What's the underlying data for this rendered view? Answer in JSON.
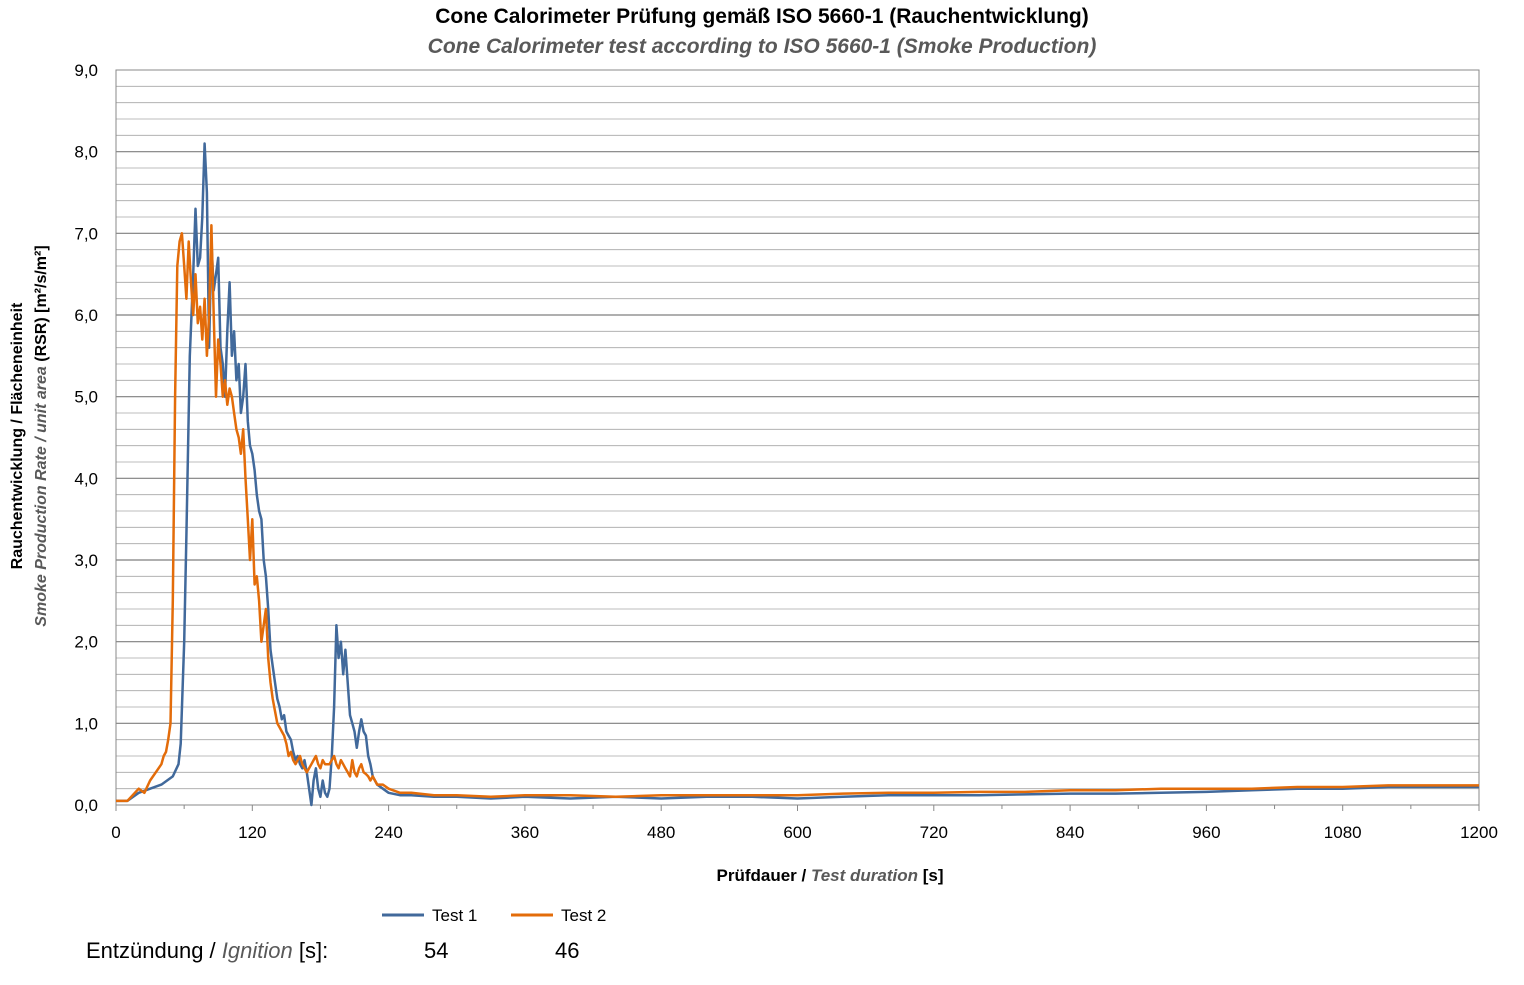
{
  "chart_data": {
    "type": "line",
    "title": "Cone Calorimeter Prüfung gemäß ISO 5660-1 (Rauchentwicklung)",
    "subtitle": "Cone Calorimeter test according to ISO 5660-1 (Smoke Production)",
    "xlabel": {
      "main": "Prüfdauer / ",
      "italic": "Test duration",
      "unit": " [s]"
    },
    "ylabel": {
      "main": "Rauchentwicklung / Flächeneinheit",
      "italic": "Smoke Production Rate / unit area",
      "unit": " (RSR) [m²/s/m²]"
    },
    "xlim": [
      0,
      1200
    ],
    "ylim": [
      0,
      9
    ],
    "xticks": [
      0,
      120,
      240,
      360,
      480,
      600,
      720,
      840,
      960,
      1080,
      1200
    ],
    "yticks": [
      "0,0",
      "1,0",
      "2,0",
      "3,0",
      "4,0",
      "5,0",
      "6,0",
      "7,0",
      "8,0",
      "9,0"
    ],
    "grid": true,
    "minor_grid_step": 0.2,
    "legend_position": "bottom-left",
    "series": [
      {
        "name": "Test 1",
        "color": "#41699b",
        "points": [
          [
            0,
            0.05
          ],
          [
            10,
            0.05
          ],
          [
            20,
            0.15
          ],
          [
            30,
            0.2
          ],
          [
            40,
            0.25
          ],
          [
            45,
            0.3
          ],
          [
            50,
            0.35
          ],
          [
            55,
            0.5
          ],
          [
            57,
            0.75
          ],
          [
            60,
            2.0
          ],
          [
            62,
            3.3
          ],
          [
            65,
            5.5
          ],
          [
            68,
            6.5
          ],
          [
            70,
            7.3
          ],
          [
            72,
            6.6
          ],
          [
            74,
            6.7
          ],
          [
            76,
            7.2
          ],
          [
            78,
            8.1
          ],
          [
            80,
            7.5
          ],
          [
            82,
            5.6
          ],
          [
            84,
            6.9
          ],
          [
            86,
            6.3
          ],
          [
            88,
            6.5
          ],
          [
            90,
            6.7
          ],
          [
            92,
            5.6
          ],
          [
            94,
            5.4
          ],
          [
            96,
            5.0
          ],
          [
            98,
            5.8
          ],
          [
            100,
            6.4
          ],
          [
            102,
            5.5
          ],
          [
            104,
            5.8
          ],
          [
            106,
            5.2
          ],
          [
            108,
            5.4
          ],
          [
            110,
            4.8
          ],
          [
            112,
            5.0
          ],
          [
            114,
            5.4
          ],
          [
            116,
            4.7
          ],
          [
            118,
            4.4
          ],
          [
            120,
            4.3
          ],
          [
            122,
            4.1
          ],
          [
            124,
            3.8
          ],
          [
            126,
            3.6
          ],
          [
            128,
            3.5
          ],
          [
            130,
            3.0
          ],
          [
            132,
            2.8
          ],
          [
            134,
            2.4
          ],
          [
            136,
            1.9
          ],
          [
            138,
            1.7
          ],
          [
            140,
            1.5
          ],
          [
            142,
            1.3
          ],
          [
            144,
            1.2
          ],
          [
            146,
            1.05
          ],
          [
            148,
            1.1
          ],
          [
            150,
            0.9
          ],
          [
            152,
            0.85
          ],
          [
            154,
            0.8
          ],
          [
            156,
            0.65
          ],
          [
            158,
            0.55
          ],
          [
            160,
            0.6
          ],
          [
            162,
            0.5
          ],
          [
            164,
            0.45
          ],
          [
            166,
            0.55
          ],
          [
            168,
            0.4
          ],
          [
            170,
            0.2
          ],
          [
            172,
            0.0
          ],
          [
            174,
            0.3
          ],
          [
            176,
            0.45
          ],
          [
            178,
            0.2
          ],
          [
            180,
            0.1
          ],
          [
            182,
            0.3
          ],
          [
            184,
            0.15
          ],
          [
            186,
            0.1
          ],
          [
            188,
            0.2
          ],
          [
            190,
            0.6
          ],
          [
            192,
            1.2
          ],
          [
            194,
            2.2
          ],
          [
            196,
            1.8
          ],
          [
            198,
            2.0
          ],
          [
            200,
            1.6
          ],
          [
            202,
            1.9
          ],
          [
            204,
            1.5
          ],
          [
            206,
            1.1
          ],
          [
            208,
            1.0
          ],
          [
            210,
            0.9
          ],
          [
            212,
            0.7
          ],
          [
            214,
            0.9
          ],
          [
            216,
            1.05
          ],
          [
            218,
            0.9
          ],
          [
            220,
            0.85
          ],
          [
            222,
            0.6
          ],
          [
            224,
            0.5
          ],
          [
            226,
            0.35
          ],
          [
            230,
            0.25
          ],
          [
            235,
            0.2
          ],
          [
            240,
            0.15
          ],
          [
            250,
            0.12
          ],
          [
            260,
            0.12
          ],
          [
            280,
            0.1
          ],
          [
            300,
            0.1
          ],
          [
            330,
            0.08
          ],
          [
            360,
            0.1
          ],
          [
            400,
            0.08
          ],
          [
            440,
            0.1
          ],
          [
            480,
            0.08
          ],
          [
            520,
            0.1
          ],
          [
            560,
            0.1
          ],
          [
            600,
            0.08
          ],
          [
            640,
            0.1
          ],
          [
            680,
            0.12
          ],
          [
            720,
            0.12
          ],
          [
            760,
            0.12
          ],
          [
            800,
            0.13
          ],
          [
            840,
            0.14
          ],
          [
            880,
            0.14
          ],
          [
            920,
            0.15
          ],
          [
            960,
            0.16
          ],
          [
            1000,
            0.18
          ],
          [
            1040,
            0.2
          ],
          [
            1080,
            0.2
          ],
          [
            1120,
            0.22
          ],
          [
            1160,
            0.22
          ],
          [
            1200,
            0.22
          ]
        ]
      },
      {
        "name": "Test 2",
        "color": "#e36c0a",
        "points": [
          [
            0,
            0.05
          ],
          [
            10,
            0.05
          ],
          [
            20,
            0.2
          ],
          [
            25,
            0.15
          ],
          [
            30,
            0.3
          ],
          [
            35,
            0.4
          ],
          [
            40,
            0.5
          ],
          [
            42,
            0.6
          ],
          [
            44,
            0.65
          ],
          [
            46,
            0.8
          ],
          [
            48,
            1.0
          ],
          [
            50,
            2.5
          ],
          [
            52,
            5.0
          ],
          [
            54,
            6.6
          ],
          [
            56,
            6.9
          ],
          [
            58,
            7.0
          ],
          [
            60,
            6.6
          ],
          [
            62,
            6.2
          ],
          [
            64,
            6.9
          ],
          [
            66,
            6.4
          ],
          [
            68,
            6.0
          ],
          [
            70,
            6.5
          ],
          [
            72,
            5.9
          ],
          [
            74,
            6.1
          ],
          [
            76,
            5.7
          ],
          [
            78,
            6.2
          ],
          [
            80,
            5.5
          ],
          [
            82,
            6.0
          ],
          [
            84,
            7.1
          ],
          [
            86,
            6.0
          ],
          [
            88,
            5.0
          ],
          [
            90,
            5.7
          ],
          [
            92,
            5.4
          ],
          [
            94,
            5.0
          ],
          [
            96,
            5.2
          ],
          [
            98,
            4.9
          ],
          [
            100,
            5.1
          ],
          [
            102,
            5.0
          ],
          [
            104,
            4.8
          ],
          [
            106,
            4.6
          ],
          [
            108,
            4.5
          ],
          [
            110,
            4.3
          ],
          [
            112,
            4.6
          ],
          [
            114,
            4.0
          ],
          [
            116,
            3.5
          ],
          [
            118,
            3.0
          ],
          [
            120,
            3.5
          ],
          [
            122,
            2.7
          ],
          [
            124,
            2.8
          ],
          [
            126,
            2.5
          ],
          [
            128,
            2.0
          ],
          [
            130,
            2.2
          ],
          [
            132,
            2.4
          ],
          [
            134,
            1.8
          ],
          [
            136,
            1.5
          ],
          [
            138,
            1.3
          ],
          [
            140,
            1.15
          ],
          [
            142,
            1.0
          ],
          [
            144,
            0.95
          ],
          [
            146,
            0.9
          ],
          [
            148,
            0.85
          ],
          [
            150,
            0.75
          ],
          [
            152,
            0.6
          ],
          [
            154,
            0.65
          ],
          [
            156,
            0.55
          ],
          [
            158,
            0.5
          ],
          [
            160,
            0.55
          ],
          [
            162,
            0.6
          ],
          [
            164,
            0.5
          ],
          [
            166,
            0.45
          ],
          [
            168,
            0.4
          ],
          [
            170,
            0.45
          ],
          [
            172,
            0.5
          ],
          [
            174,
            0.55
          ],
          [
            176,
            0.6
          ],
          [
            178,
            0.5
          ],
          [
            180,
            0.45
          ],
          [
            182,
            0.55
          ],
          [
            184,
            0.5
          ],
          [
            186,
            0.5
          ],
          [
            188,
            0.5
          ],
          [
            190,
            0.55
          ],
          [
            192,
            0.6
          ],
          [
            194,
            0.5
          ],
          [
            196,
            0.45
          ],
          [
            198,
            0.55
          ],
          [
            200,
            0.5
          ],
          [
            202,
            0.45
          ],
          [
            204,
            0.4
          ],
          [
            206,
            0.35
          ],
          [
            208,
            0.55
          ],
          [
            210,
            0.4
          ],
          [
            212,
            0.35
          ],
          [
            214,
            0.45
          ],
          [
            216,
            0.5
          ],
          [
            218,
            0.4
          ],
          [
            220,
            0.38
          ],
          [
            222,
            0.35
          ],
          [
            224,
            0.3
          ],
          [
            226,
            0.35
          ],
          [
            230,
            0.25
          ],
          [
            235,
            0.25
          ],
          [
            240,
            0.2
          ],
          [
            250,
            0.15
          ],
          [
            260,
            0.15
          ],
          [
            280,
            0.12
          ],
          [
            300,
            0.12
          ],
          [
            330,
            0.1
          ],
          [
            360,
            0.12
          ],
          [
            400,
            0.12
          ],
          [
            440,
            0.1
          ],
          [
            480,
            0.12
          ],
          [
            520,
            0.12
          ],
          [
            560,
            0.12
          ],
          [
            600,
            0.12
          ],
          [
            640,
            0.14
          ],
          [
            680,
            0.15
          ],
          [
            720,
            0.15
          ],
          [
            760,
            0.16
          ],
          [
            800,
            0.16
          ],
          [
            840,
            0.18
          ],
          [
            880,
            0.18
          ],
          [
            920,
            0.2
          ],
          [
            960,
            0.2
          ],
          [
            1000,
            0.2
          ],
          [
            1040,
            0.22
          ],
          [
            1080,
            0.22
          ],
          [
            1120,
            0.24
          ],
          [
            1160,
            0.24
          ],
          [
            1200,
            0.24
          ]
        ]
      }
    ]
  },
  "ignition": {
    "label_prefix": "Entzündung / ",
    "label_italic": "Ignition",
    "label_suffix": " [s]:",
    "test1": "54",
    "test2": "46"
  }
}
